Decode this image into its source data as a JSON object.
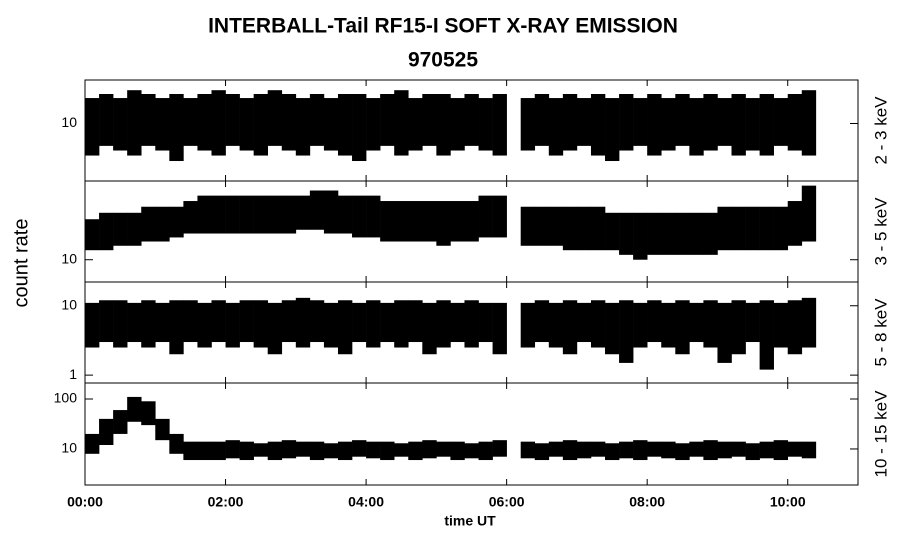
{
  "chart_data": {
    "type": "range",
    "title": "INTERBALL-Tail RF15-I SOFT X-RAY EMISSION",
    "subtitle": "970525",
    "x_label": "time UT",
    "y_label": "count rate",
    "log_y": true,
    "color": "#000000",
    "xlim": [
      0,
      11
    ],
    "xticks": [
      {
        "value": 0,
        "label": "00:00"
      },
      {
        "value": 2,
        "label": "02:00"
      },
      {
        "value": 4,
        "label": "04:00"
      },
      {
        "value": 6,
        "label": "06:00"
      },
      {
        "value": 8,
        "label": "08:00"
      },
      {
        "value": 10,
        "label": "10:00"
      }
    ],
    "x": [
      0,
      0.2,
      0.4,
      0.6,
      0.8,
      1,
      1.2,
      1.4,
      1.6,
      1.8,
      2,
      2.2,
      2.4,
      2.6,
      2.8,
      3,
      3.2,
      3.4,
      3.6,
      3.8,
      4,
      4.2,
      4.4,
      4.6,
      4.8,
      5,
      5.2,
      5.4,
      5.6,
      5.8,
      6,
      6.2,
      6.4,
      6.6,
      6.8,
      7,
      7.2,
      7.4,
      7.6,
      7.8,
      8,
      8.2,
      8.4,
      8.6,
      8.8,
      9,
      9.2,
      9.4,
      9.6,
      9.8,
      10,
      10.2
    ],
    "panels": [
      {
        "label": "2 - 3 keV",
        "ylim": [
          4,
          20
        ],
        "yticks": [
          10
        ],
        "high": [
          15,
          16,
          15,
          17,
          16,
          15,
          16,
          15,
          16,
          17,
          16,
          15,
          16,
          17,
          16,
          15,
          16,
          15,
          16,
          16,
          15,
          16,
          17,
          15,
          16,
          16,
          15,
          16,
          15,
          16,
          null,
          15,
          16,
          15,
          16,
          15,
          16,
          15,
          16,
          15,
          16,
          15,
          16,
          15,
          16,
          15,
          16,
          15,
          16,
          15,
          16,
          17
        ],
        "low": [
          6,
          7,
          6.5,
          6,
          7,
          6.5,
          5.5,
          7,
          6.5,
          6,
          7,
          6.5,
          6,
          7,
          6.5,
          6,
          7,
          6.5,
          6,
          5.5,
          6.5,
          7,
          6,
          6.5,
          7,
          6,
          6.5,
          7,
          6.5,
          6,
          null,
          6.5,
          7,
          6,
          6.5,
          7,
          6,
          5.5,
          6.5,
          7,
          6,
          6.5,
          7,
          6,
          6.5,
          7,
          6,
          6.5,
          6,
          7,
          6.5,
          6
        ]
      },
      {
        "label": "3 - 5 keV",
        "ylim": [
          8,
          22
        ],
        "yticks": [
          10
        ],
        "high": [
          15,
          16,
          16,
          16,
          17,
          17,
          17,
          18,
          19,
          19,
          19,
          19,
          19,
          19,
          19,
          19,
          20,
          20,
          19,
          19,
          19,
          18,
          18,
          18,
          18,
          18,
          18,
          18,
          19,
          19,
          null,
          17,
          17,
          17,
          17,
          17,
          17,
          16,
          16,
          16,
          16,
          16,
          16,
          16,
          16,
          17,
          17,
          17,
          17,
          17,
          18,
          21
        ],
        "low": [
          11,
          11,
          11.5,
          11.5,
          12,
          12,
          12.5,
          13,
          13,
          13,
          13,
          13,
          13,
          13,
          13,
          13.5,
          13.5,
          13,
          13,
          12.5,
          12.5,
          12,
          12,
          12,
          12,
          11.5,
          12,
          12,
          12.5,
          12.5,
          null,
          11.5,
          11.5,
          11.5,
          11,
          11,
          11,
          11,
          10.5,
          10,
          10.5,
          10.5,
          10.5,
          10.5,
          10.5,
          11,
          11,
          11,
          11,
          11,
          11.5,
          12
        ]
      },
      {
        "label": "5 - 8 keV",
        "ylim": [
          0.77,
          22
        ],
        "yticks": [
          1,
          10
        ],
        "high": [
          11,
          12,
          12,
          11,
          12,
          11,
          12,
          12,
          11,
          12,
          11,
          12,
          12,
          11,
          12,
          13,
          12,
          11,
          12,
          11,
          12,
          11,
          12,
          12,
          11,
          12,
          11,
          12,
          11,
          11,
          null,
          11,
          12,
          11,
          12,
          11,
          12,
          11,
          12,
          11,
          12,
          11,
          12,
          11,
          12,
          11,
          12,
          11,
          12,
          11,
          12,
          13
        ],
        "low": [
          2.5,
          3,
          2.5,
          3,
          2.5,
          3,
          2,
          3,
          2.5,
          3,
          2.5,
          3,
          2.5,
          2,
          3,
          2.5,
          3,
          2.5,
          2,
          3,
          2.5,
          3,
          2.5,
          3,
          2,
          2.5,
          3,
          2.5,
          3,
          2,
          null,
          2.5,
          3,
          2.5,
          2,
          3,
          2.5,
          2,
          1.5,
          2.5,
          3,
          2.5,
          2,
          3,
          2.5,
          1.5,
          2,
          3,
          1.2,
          2.5,
          2,
          2.5
        ]
      },
      {
        "label": "10 - 15 keV",
        "ylim": [
          1.9,
          209
        ],
        "yticks": [
          10,
          100
        ],
        "high": [
          20,
          40,
          60,
          110,
          90,
          40,
          20,
          14,
          14,
          14,
          15,
          14,
          13,
          14,
          15,
          14,
          14,
          13,
          14,
          15,
          14,
          14,
          13,
          14,
          15,
          14,
          14,
          13,
          14,
          15,
          null,
          14,
          13,
          14,
          15,
          14,
          14,
          13,
          14,
          15,
          14,
          14,
          13,
          14,
          15,
          14,
          14,
          13,
          14,
          15,
          14,
          14
        ],
        "low": [
          8,
          12,
          20,
          35,
          30,
          15,
          8,
          6,
          6,
          6,
          6.5,
          6,
          7,
          6,
          6.5,
          7,
          6,
          6.5,
          6,
          7,
          6.5,
          6,
          7,
          6,
          6.5,
          7,
          6,
          6.5,
          6,
          7,
          null,
          6.5,
          6,
          7,
          6,
          6.5,
          7,
          6,
          6.5,
          6,
          7,
          6.5,
          6,
          7,
          6,
          6.5,
          7,
          6,
          6.5,
          6,
          7,
          6.5
        ]
      }
    ]
  }
}
